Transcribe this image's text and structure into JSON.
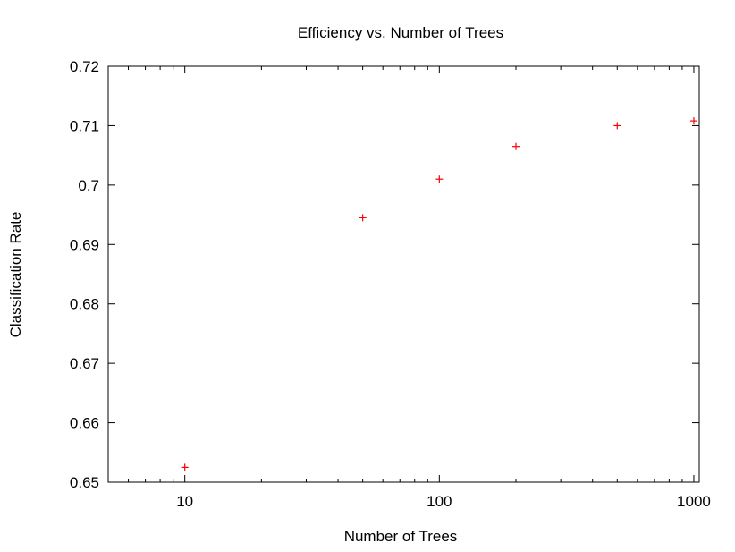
{
  "chart_data": {
    "type": "scatter",
    "title": "Efficiency vs. Number of Trees",
    "xlabel": "Number of Trees",
    "ylabel": "Classification Rate",
    "x_scale": "log",
    "xlim": [
      5,
      1050
    ],
    "ylim": [
      0.65,
      0.72
    ],
    "x_ticks": [
      10,
      100,
      1000
    ],
    "x_tick_labels": [
      "10",
      "100",
      "1000"
    ],
    "y_ticks": [
      0.65,
      0.66,
      0.67,
      0.68,
      0.69,
      0.7,
      0.71,
      0.72
    ],
    "y_tick_labels": [
      "0.65",
      "0.66",
      "0.67",
      "0.68",
      "0.69",
      "0.7",
      "0.71",
      "0.72"
    ],
    "grid": false,
    "marker": "plus",
    "marker_color": "#ff0000",
    "series": [
      {
        "x": [
          10,
          50,
          100,
          200,
          500,
          1000
        ],
        "y": [
          0.6525,
          0.6945,
          0.701,
          0.7065,
          0.71,
          0.7108
        ]
      }
    ]
  }
}
